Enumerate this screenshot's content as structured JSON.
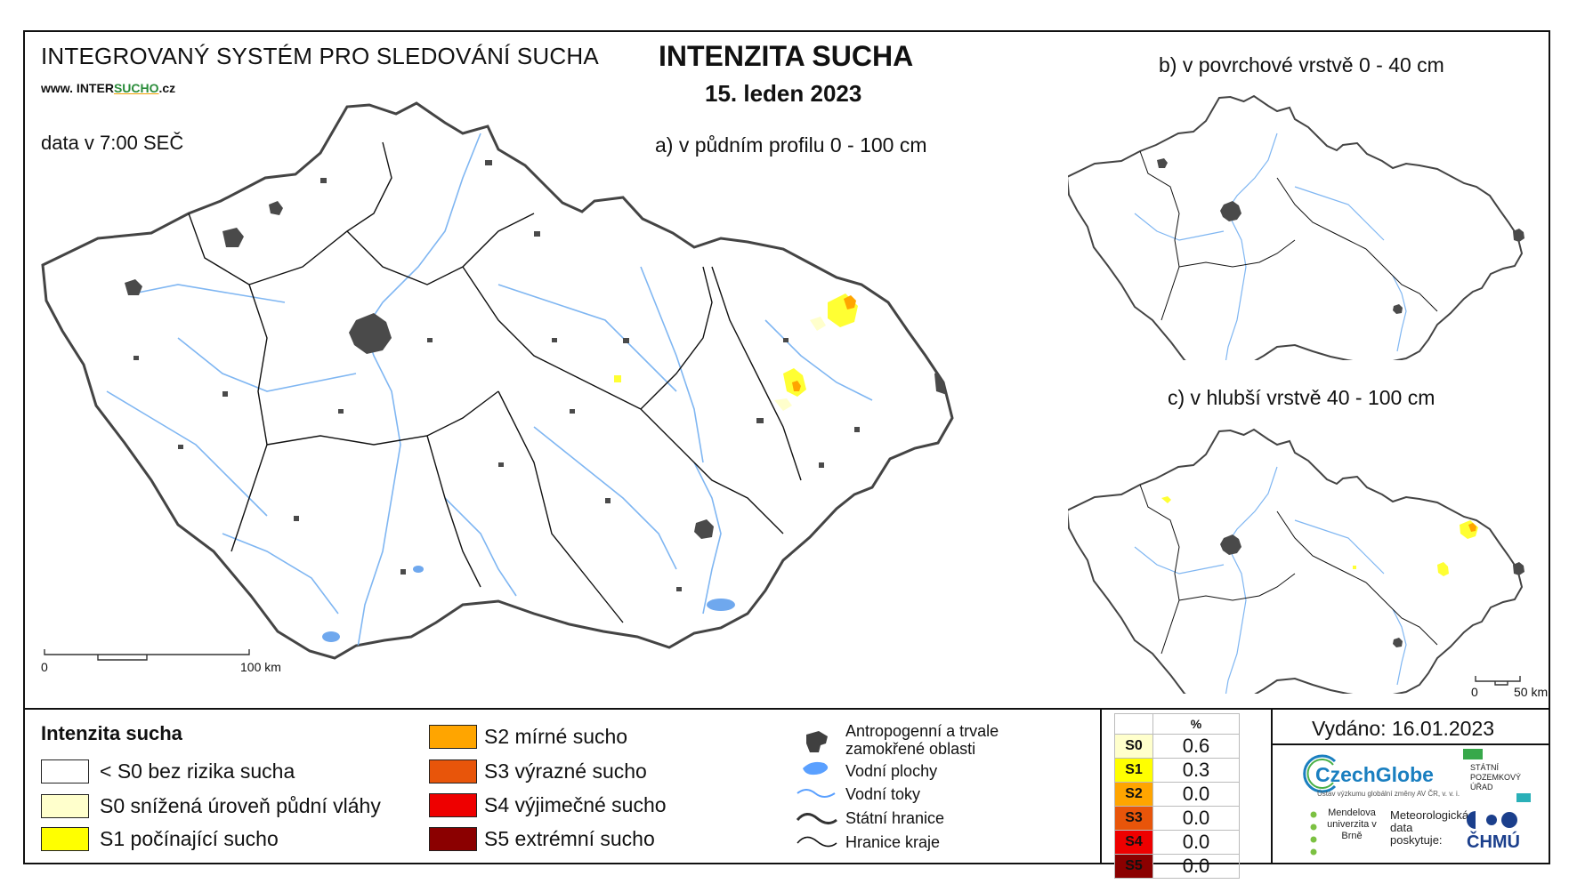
{
  "header": {
    "system_name": "INTEGROVANÝ SYSTÉM PRO SLEDOVÁNÍ SUCHA",
    "website_prefix": "www. INTER",
    "website_highlight": "SUCHO",
    "website_suffix": ".cz",
    "data_time": "data v 7:00 SEČ",
    "title": "INTENZITA SUCHA",
    "date": "15. leden 2023"
  },
  "maps": {
    "a_label": "a) v půdním profilu 0 - 100 cm",
    "b_label": "b) v povrchové vrstvě 0 - 40 cm",
    "c_label": "c) v hlubší vrstvě 40 - 100 cm",
    "scale_main": {
      "zero": "0",
      "end": "100 km"
    },
    "scale_small": {
      "zero": "0",
      "end": "50 km"
    }
  },
  "legend": {
    "title": "Intenzita sucha",
    "classes": [
      {
        "label": "< S0 bez rizika sucha",
        "color": "#ffffff"
      },
      {
        "label": "S0 snížená úroveň půdní vláhy",
        "color": "#ffffcc"
      },
      {
        "label": "S1 počínající sucho",
        "color": "#ffff00"
      },
      {
        "label": "S2 mírné sucho",
        "color": "#ffa500"
      },
      {
        "label": "S3 výrazné sucho",
        "color": "#e8550a"
      },
      {
        "label": "S4 výjimečné sucho",
        "color": "#ee0000"
      },
      {
        "label": "S5 extrémní sucho",
        "color": "#8b0000"
      }
    ],
    "overlays": [
      {
        "label": "Antropogenní a trvale zamokřené oblasti",
        "icon": "urban-area-icon",
        "color": "#404040"
      },
      {
        "label": "Vodní plochy",
        "icon": "water-body-icon",
        "color": "#5aa0ff"
      },
      {
        "label": "Vodní toky",
        "icon": "river-icon",
        "color": "#5aa0ff"
      },
      {
        "label": "Státní hranice",
        "icon": "state-border-icon",
        "color": "#333333"
      },
      {
        "label": "Hranice kraje",
        "icon": "region-border-icon",
        "color": "#111111"
      }
    ]
  },
  "stats": {
    "header": "%",
    "rows": [
      {
        "cls": "S0",
        "value": "0.6",
        "bg": "#ffffcc",
        "fg": "#000000"
      },
      {
        "cls": "S1",
        "value": "0.3",
        "bg": "#ffff00",
        "fg": "#000000"
      },
      {
        "cls": "S2",
        "value": "0.0",
        "bg": "#ffa500",
        "fg": "#000000"
      },
      {
        "cls": "S3",
        "value": "0.0",
        "bg": "#e8550a",
        "fg": "#000000"
      },
      {
        "cls": "S4",
        "value": "0.0",
        "bg": "#ee0000",
        "fg": "#000000"
      },
      {
        "cls": "S5",
        "value": "0.0",
        "bg": "#8b0000",
        "fg": "#000000"
      }
    ]
  },
  "issued": "Vydáno: 16.01.2023",
  "logos": {
    "czechglobe": "CzechGlobe",
    "czechglobe_sub": "Ústav výzkumu globální změny AV ČR, v. v. i.",
    "spu": "STÁTNÍ POZEMKOVÝ ÚŘAD",
    "mendelu": "Mendelova univerzita v Brně",
    "met_data": "Meteorologická data poskytuje:",
    "chmu": "ČHMÚ"
  }
}
